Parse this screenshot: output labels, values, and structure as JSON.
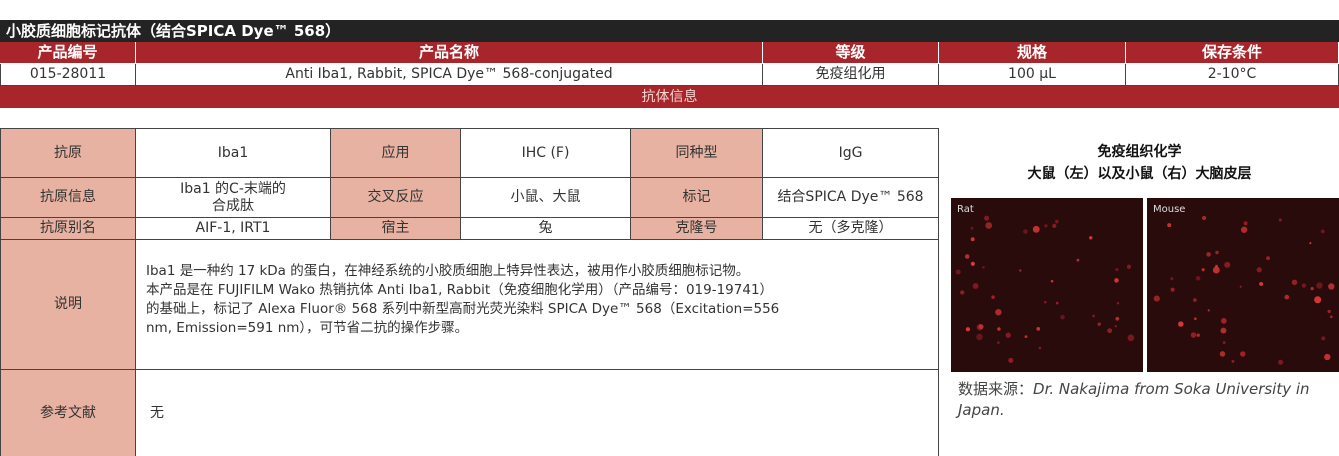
{
  "title": "小胶质细胞标记抗体（结合SPICA Dye™ 568）",
  "product_table": {
    "headers": [
      "产品编号",
      "产品名称",
      "等级",
      "规格",
      "保存条件"
    ],
    "row": [
      "015-28011",
      "Anti Iba1, Rabbit, SPICA Dye™ 568-conjugated",
      "免疫组化用",
      "100 µL",
      "2-10°C"
    ]
  },
  "section_title": "抗体信息",
  "info_table": {
    "rows": [
      [
        "抗原",
        "Iba1",
        "应用",
        "IHC (F)",
        "同种型",
        "IgG"
      ],
      [
        "抗原信息",
        "Iba1 的C-末端的\n合成肽",
        "交叉反应",
        "小鼠、大鼠",
        "标记",
        "结合SPICA Dye™ 568"
      ],
      [
        "抗原别名",
        "AIF-1, IRT1",
        "宿主",
        "兔",
        "克隆号",
        "无（多克隆）"
      ]
    ],
    "description": {
      "label": "说明",
      "lines": [
        "Iba1 是一种约 17 kDa 的蛋白，在神经系统的小胶质细胞上特异性表达，被用作小胶质细胞标记物。",
        "本产品是在 FUJIFILM Wako 热销抗体 Anti Iba1, Rabbit（免疫细胞化学用）（产品编号：019-19741）",
        "的基础上，标记了 Alexa Fluor® 568 系列中新型高耐光荧光染料 SPICA Dye™ 568（Excitation=556",
        "nm, Emission=591 nm），可节省二抗的操作步骤。"
      ]
    },
    "references": {
      "label": "参考文献",
      "value": "无"
    }
  },
  "figure": {
    "title_lines": [
      "免疫组织化学",
      "大鼠（左）以及小鼠（右）大脑皮层"
    ],
    "panel_labels": [
      "Rat",
      "Mouse"
    ],
    "source_label": "数据来源：",
    "source_text": "Dr. Nakajima from Soka University in Japan."
  }
}
